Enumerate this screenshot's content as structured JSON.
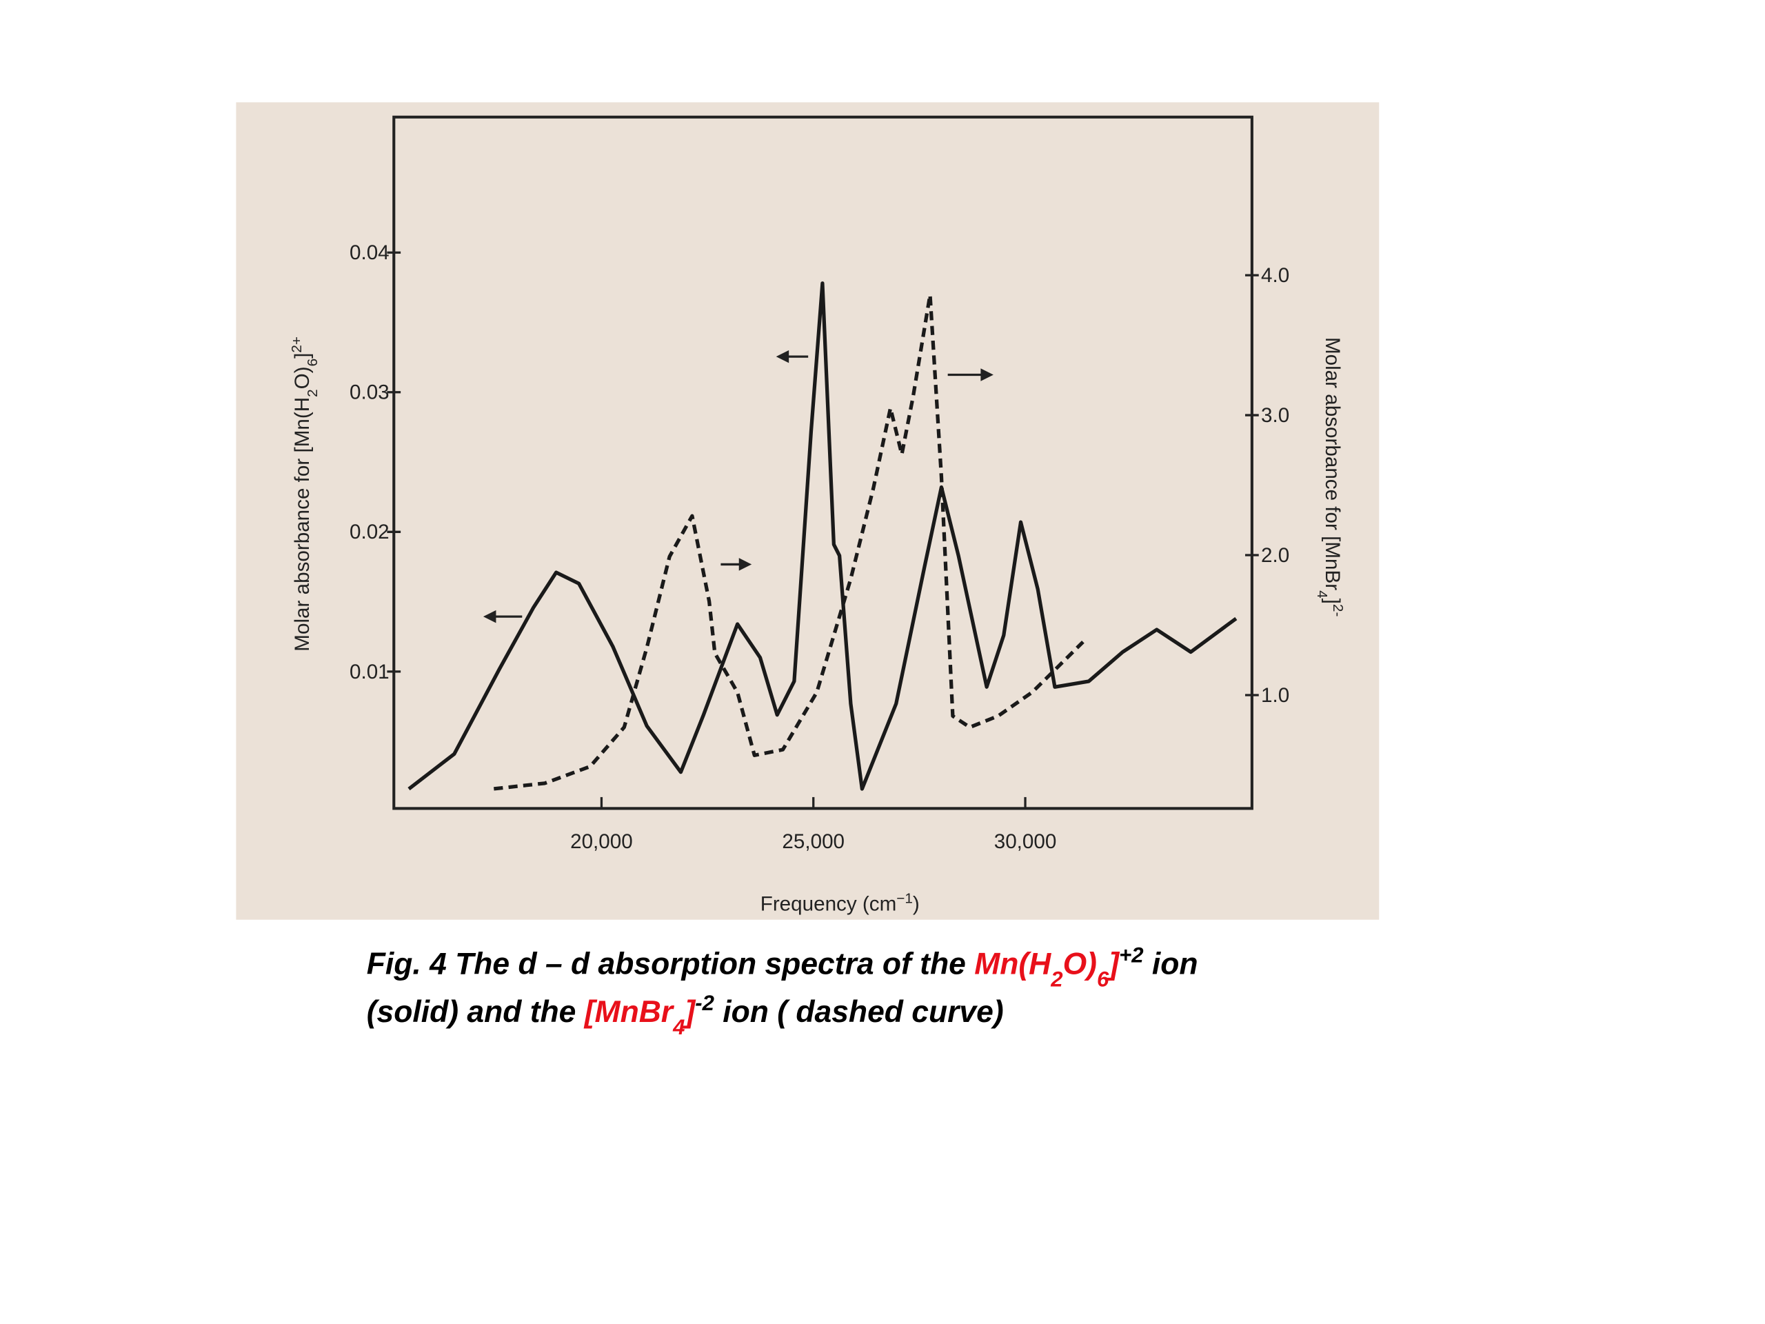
{
  "chart_data": {
    "type": "line",
    "x_label": [
      {
        "text": "Frequency (cm"
      },
      {
        "text": "−1",
        "shift": "super"
      },
      {
        "text": ")"
      }
    ],
    "y_label": [
      {
        "text": "Molar absorbance for [Mn(H"
      },
      {
        "text": "2",
        "shift": "sub"
      },
      {
        "text": "O)"
      },
      {
        "text": "6",
        "shift": "sub"
      },
      {
        "text": "]"
      },
      {
        "text": "2+",
        "shift": "super"
      }
    ],
    "y2_label": [
      {
        "text": "Molar absorbance for [MnBr"
      },
      {
        "text": "4",
        "shift": "sub"
      },
      {
        "text": "]"
      },
      {
        "text": "2-",
        "shift": "super"
      }
    ],
    "xlim": [
      15100,
      35350
    ],
    "xticks": [
      {
        "value": 20000,
        "label": "20,000"
      },
      {
        "value": 25000,
        "label": "25,000"
      },
      {
        "value": 30000,
        "label": "30,000"
      }
    ],
    "ylim": [
      0.0002,
      0.0497
    ],
    "yticks": [
      0.01,
      0.02,
      0.03,
      0.04
    ],
    "y2lim": [
      0.19,
      5.13
    ],
    "y2ticks": [
      {
        "value": 1,
        "label": "1.0"
      },
      {
        "value": 2,
        "label": "2.0"
      },
      {
        "value": 3,
        "label": "3.0"
      },
      {
        "value": 4,
        "label": "4.0"
      }
    ],
    "series": [
      {
        "color": "#1a1a1a",
        "dashed": false,
        "x": [
          15454,
          16524,
          17593,
          18396,
          18930,
          19465,
          20267,
          21070,
          21872,
          22407,
          23209,
          23744,
          24145,
          24546,
          24947,
          25214,
          25481,
          25615,
          25882,
          26150,
          26952,
          27621,
          28022,
          28423,
          29091,
          29493,
          29894,
          30295,
          30696,
          31498,
          32300,
          33103,
          33905,
          34975
        ],
        "values": [
          0.0016,
          0.0041,
          0.0102,
          0.0146,
          0.0171,
          0.0163,
          0.0118,
          0.0061,
          0.0028,
          0.0069,
          0.0134,
          0.011,
          0.0069,
          0.0093,
          0.0272,
          0.0378,
          0.0191,
          0.0183,
          0.0077,
          0.0016,
          0.0077,
          0.0175,
          0.0232,
          0.0183,
          0.0089,
          0.0126,
          0.0207,
          0.0159,
          0.0089,
          0.0093,
          0.0114,
          0.013,
          0.0114,
          0.0138
        ]
      },
      {
        "color": "#1a1a1a",
        "dashed": true,
        "axis": "y2",
        "x": [
          17460,
          18663,
          19733,
          20535,
          21070,
          21605,
          22140,
          22541,
          22674,
          23209,
          23610,
          24279,
          25080,
          25882,
          26417,
          26818,
          27086,
          27353,
          27754,
          28022,
          28289,
          28690,
          29358,
          30161,
          30696,
          31364
        ],
        "values": [
          0.33,
          0.37,
          0.49,
          0.77,
          1.34,
          1.99,
          2.28,
          1.67,
          1.3,
          1.02,
          0.57,
          0.61,
          1.02,
          1.83,
          2.48,
          3.05,
          2.72,
          3.13,
          3.86,
          2.56,
          0.85,
          0.77,
          0.85,
          1.02,
          1.18,
          1.38
        ]
      }
    ]
  },
  "caption": {
    "lines": [
      [
        {
          "text": "Fig. 4 The d – d absorption spectra of the ",
          "color": "#000000"
        },
        {
          "text": "Mn(H",
          "color": "#e8101a"
        },
        {
          "text": "2",
          "color": "#e8101a",
          "shift": "sub"
        },
        {
          "text": "O)",
          "color": "#e8101a"
        },
        {
          "text": "6",
          "color": "#e8101a",
          "shift": "sub"
        },
        {
          "text": "]",
          "color": "#e8101a"
        },
        {
          "text": "+2",
          "color": "#000000",
          "shift": "super"
        },
        {
          "text": " ion",
          "color": "#000000"
        }
      ],
      [
        {
          "text": "(solid) and the ",
          "color": "#000000"
        },
        {
          "text": "[MnBr",
          "color": "#e8101a"
        },
        {
          "text": "4",
          "color": "#e8101a",
          "shift": "sub"
        },
        {
          "text": "]",
          "color": "#e8101a"
        },
        {
          "text": "-2",
          "color": "#000000",
          "shift": "super"
        },
        {
          "text": " ion ( dashed curve)",
          "color": "#000000"
        }
      ]
    ]
  }
}
